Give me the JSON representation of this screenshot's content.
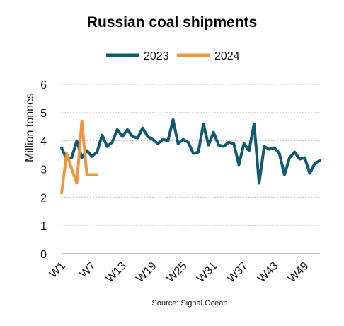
{
  "chart_data": {
    "type": "line",
    "title": "Russian coal shipments",
    "ylabel": "Million tonnes",
    "xlabel": "",
    "ylim": [
      0,
      6
    ],
    "yticks": [
      0,
      1,
      2,
      3,
      4,
      5,
      6
    ],
    "xticks": [
      "W1",
      "W7",
      "W13",
      "W19",
      "W25",
      "W31",
      "W37",
      "W43",
      "W49"
    ],
    "grid": "horizontal",
    "legend": "top",
    "source": "Source: Signal Ocean",
    "series": [
      {
        "name": "2023",
        "color": "#0f5a72",
        "x": [
          1,
          2,
          3,
          4,
          5,
          6,
          7,
          8,
          9,
          10,
          11,
          12,
          13,
          14,
          15,
          16,
          17,
          18,
          19,
          20,
          21,
          22,
          23,
          24,
          25,
          26,
          27,
          28,
          29,
          30,
          31,
          32,
          33,
          34,
          35,
          36,
          37,
          38,
          39,
          40,
          41,
          42,
          43,
          44,
          45,
          46,
          47,
          48,
          49,
          50,
          51,
          52
        ],
        "values": [
          3.75,
          3.35,
          3.4,
          4.0,
          3.4,
          3.65,
          3.45,
          3.6,
          4.2,
          3.8,
          3.95,
          4.4,
          4.15,
          4.4,
          4.15,
          4.1,
          4.45,
          4.15,
          4.05,
          3.9,
          4.05,
          4.0,
          4.75,
          3.9,
          4.05,
          3.95,
          3.55,
          3.6,
          4.6,
          3.85,
          4.3,
          3.85,
          3.8,
          3.95,
          3.9,
          3.15,
          3.9,
          3.65,
          4.6,
          2.5,
          3.8,
          3.7,
          3.75,
          3.55,
          2.8,
          3.4,
          3.6,
          3.35,
          3.4,
          2.85,
          3.2,
          3.3
        ]
      },
      {
        "name": "2024",
        "color": "#f0963c",
        "x": [
          1,
          2,
          3,
          4,
          5,
          6,
          7,
          8
        ],
        "values": [
          2.15,
          3.55,
          3.0,
          2.5,
          4.7,
          2.8,
          2.8,
          2.8
        ]
      }
    ]
  }
}
